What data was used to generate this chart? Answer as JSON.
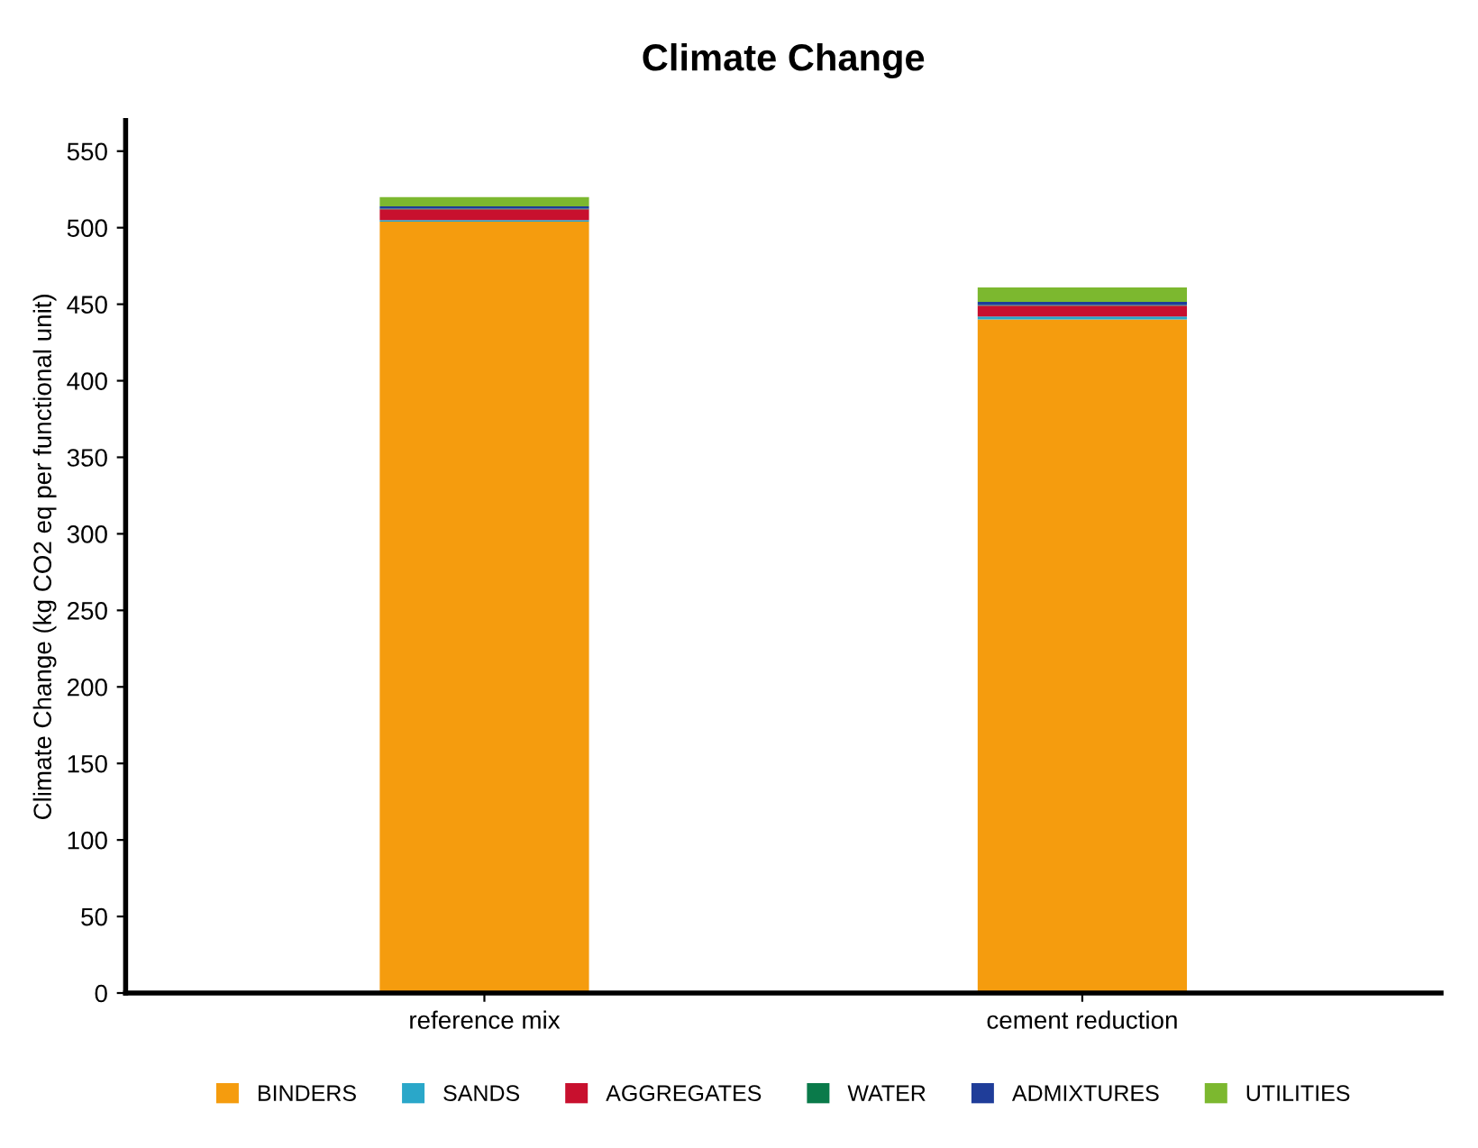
{
  "chart_data": {
    "type": "bar",
    "stacked": true,
    "title": "Climate Change",
    "ylabel": "Climate Change (kg CO2 eq per functional unit)",
    "categories": [
      "reference mix",
      "cement reduction"
    ],
    "series": [
      {
        "name": "BINDERS",
        "color": "#f59c0e",
        "values": [
          504,
          440
        ]
      },
      {
        "name": "SANDS",
        "color": "#2aa7c9",
        "values": [
          1,
          2
        ]
      },
      {
        "name": "AGGREGATES",
        "color": "#c8102e",
        "values": [
          7,
          7
        ]
      },
      {
        "name": "WATER",
        "color": "#0a7a4a",
        "values": [
          0.5,
          0.5
        ]
      },
      {
        "name": "ADMIXTURES",
        "color": "#1f3d99",
        "values": [
          1.5,
          2
        ]
      },
      {
        "name": "UTILITIES",
        "color": "#7cb82f",
        "values": [
          6,
          9.5
        ]
      }
    ],
    "ylim": [
      0,
      570
    ],
    "yticks": [
      0,
      50,
      100,
      150,
      200,
      250,
      300,
      350,
      400,
      450,
      500,
      550
    ],
    "grid": false,
    "legend": "bottom"
  }
}
